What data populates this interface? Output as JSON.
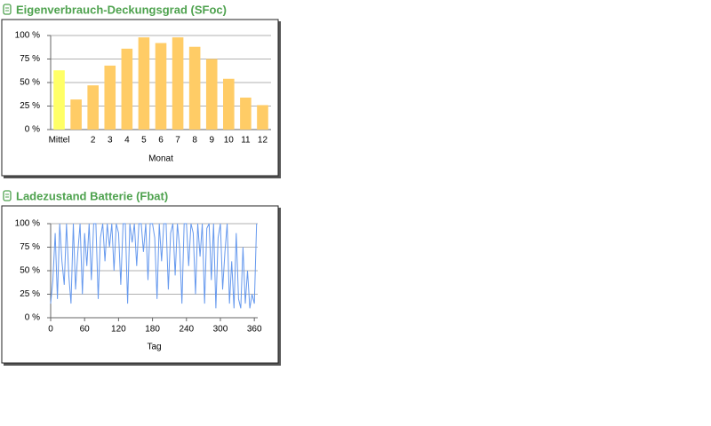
{
  "chart_data": [
    {
      "type": "bar",
      "title": "Eigenverbrauch-Deckungsgrad (SFoc)",
      "xlabel": "Monat",
      "categories": [
        "Mittel",
        null,
        "2",
        "3",
        "4",
        "5",
        "6",
        "7",
        "8",
        "9",
        "10",
        "11",
        "12"
      ],
      "values": [
        63,
        32,
        47,
        68,
        86,
        98,
        92,
        98,
        88,
        75,
        54,
        34,
        26
      ],
      "colors": [
        "#ffff66",
        "#ffcc66",
        "#ffcc66",
        "#ffcc66",
        "#ffcc66",
        "#ffcc66",
        "#ffcc66",
        "#ffcc66",
        "#ffcc66",
        "#ffcc66",
        "#ffcc66",
        "#ffcc66",
        "#ffcc66"
      ],
      "ylim": [
        0,
        100
      ],
      "yticks": [
        {
          "value": 0,
          "label": "0 %"
        },
        {
          "value": 25,
          "label": "25 %"
        },
        {
          "value": 50,
          "label": "50 %"
        },
        {
          "value": 75,
          "label": "75 %"
        },
        {
          "value": 100,
          "label": "100 %"
        }
      ],
      "grid": true
    },
    {
      "type": "line",
      "title": "Ladezustand Batterie (Fbat)",
      "xlabel": "Tag",
      "color": "#6699ee",
      "x": [
        0,
        4,
        8,
        12,
        16,
        20,
        24,
        28,
        32,
        36,
        40,
        44,
        48,
        52,
        56,
        60,
        64,
        68,
        72,
        76,
        80,
        84,
        88,
        92,
        96,
        100,
        104,
        108,
        112,
        116,
        120,
        124,
        128,
        132,
        136,
        140,
        144,
        148,
        152,
        156,
        160,
        164,
        168,
        172,
        176,
        180,
        184,
        188,
        192,
        196,
        200,
        204,
        208,
        212,
        216,
        220,
        224,
        228,
        232,
        236,
        240,
        244,
        248,
        252,
        256,
        260,
        264,
        268,
        272,
        276,
        280,
        284,
        288,
        292,
        296,
        300,
        304,
        308,
        312,
        316,
        320,
        324,
        328,
        332,
        336,
        340,
        344,
        348,
        352,
        356,
        360,
        364
      ],
      "values": [
        15,
        40,
        90,
        20,
        100,
        60,
        35,
        100,
        45,
        15,
        100,
        30,
        70,
        100,
        25,
        90,
        55,
        100,
        40,
        100,
        100,
        20,
        85,
        100,
        60,
        100,
        75,
        100,
        50,
        100,
        90,
        35,
        100,
        100,
        15,
        100,
        80,
        100,
        55,
        100,
        100,
        70,
        100,
        40,
        100,
        100,
        85,
        20,
        100,
        60,
        100,
        100,
        30,
        90,
        100,
        45,
        100,
        75,
        15,
        100,
        100,
        55,
        100,
        90,
        25,
        100,
        65,
        100,
        15,
        95,
        100,
        40,
        100,
        10,
        85,
        100,
        30,
        70,
        100,
        15,
        60,
        10,
        90,
        20,
        10,
        75,
        15,
        50,
        10,
        25,
        15,
        100
      ],
      "xlim": [
        0,
        366
      ],
      "xticks": [
        0,
        60,
        120,
        180,
        240,
        300,
        360
      ],
      "ylim": [
        0,
        100
      ],
      "yticks": [
        {
          "value": 0,
          "label": "0 %"
        },
        {
          "value": 25,
          "label": "25 %"
        },
        {
          "value": 50,
          "label": "50 %"
        },
        {
          "value": 75,
          "label": "75 %"
        },
        {
          "value": 100,
          "label": "100 %"
        }
      ],
      "grid": true
    }
  ]
}
